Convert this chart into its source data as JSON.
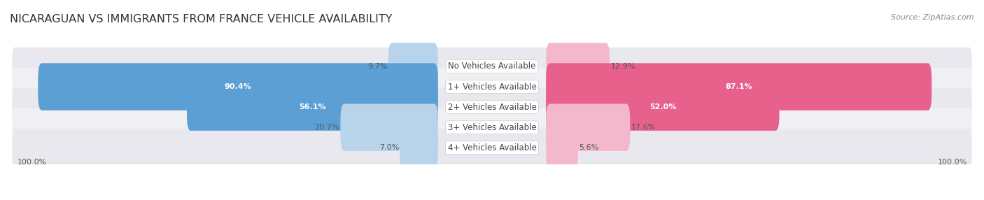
{
  "title": "NICARAGUAN VS IMMIGRANTS FROM FRANCE VEHICLE AVAILABILITY",
  "source": "Source: ZipAtlas.com",
  "categories": [
    "No Vehicles Available",
    "1+ Vehicles Available",
    "2+ Vehicles Available",
    "3+ Vehicles Available",
    "4+ Vehicles Available"
  ],
  "nicaraguan_values": [
    9.7,
    90.4,
    56.1,
    20.7,
    7.0
  ],
  "france_values": [
    12.9,
    87.1,
    52.0,
    17.6,
    5.6
  ],
  "nicaraguan_color_light": "#b8d4ea",
  "nicaraguan_color_dark": "#5b9fd4",
  "france_color_light": "#f4b8cc",
  "france_color_dark": "#e8608c",
  "row_bg_color": "#e8e8ee",
  "row_bg_alt": "#f0f0f4",
  "title_fontsize": 11.5,
  "source_fontsize": 8,
  "label_fontsize": 8.5,
  "value_fontsize": 8,
  "legend_fontsize": 9,
  "footer_fontsize": 8,
  "fig_bg_color": "#ffffff",
  "threshold": 40
}
